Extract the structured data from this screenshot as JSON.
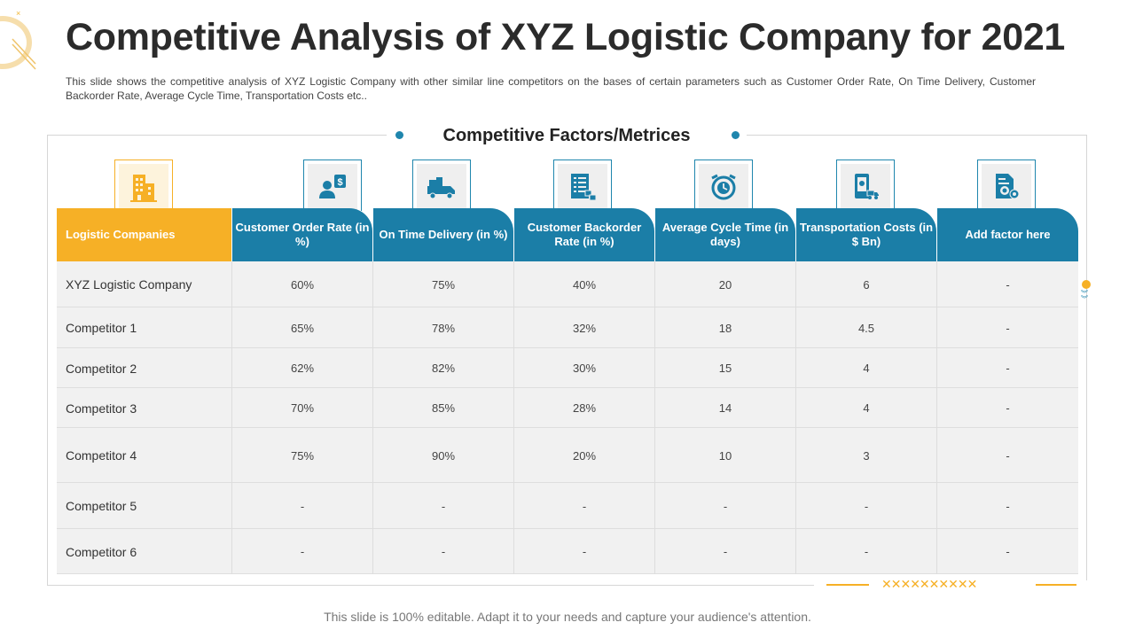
{
  "title": "Competitive Analysis of XYZ Logistic Company for 2021",
  "description": "This slide shows the competitive analysis of XYZ Logistic Company with other similar line competitors on the bases of certain parameters such as Customer Order Rate, On Time Delivery, Customer Backorder Rate, Average Cycle Time, Transportation Costs etc..",
  "section_heading": "Competitive Factors/Metrices",
  "colors": {
    "accent_orange": "#f6b026",
    "accent_blue": "#1b7ea7",
    "row_bg": "#f1f1f1"
  },
  "table": {
    "columns": [
      {
        "label": "Logistic Companies",
        "icon": "office-building-icon"
      },
      {
        "label": "Customer Order Rate (in %)",
        "icon": "customer-money-icon"
      },
      {
        "label": "On Time Delivery (in %)",
        "icon": "delivery-truck-icon"
      },
      {
        "label": "Customer Backorder Rate (in %)",
        "icon": "backorder-list-icon"
      },
      {
        "label": "Average Cycle Time (in days)",
        "icon": "clock-cycle-icon"
      },
      {
        "label": "Transportation Costs (in $ Bn)",
        "icon": "mobile-transport-icon"
      },
      {
        "label": "Add factor here",
        "icon": "settings-document-icon"
      }
    ],
    "rows": [
      [
        "XYZ  Logistic Company",
        "60%",
        "75%",
        "40%",
        "20",
        "6",
        "-"
      ],
      [
        "Competitor 1",
        "65%",
        "78%",
        "32%",
        "18",
        "4.5",
        "-"
      ],
      [
        "Competitor 2",
        "62%",
        "82%",
        "30%",
        "15",
        "4",
        "-"
      ],
      [
        "Competitor 3",
        "70%",
        "85%",
        "28%",
        "14",
        "4",
        "-"
      ],
      [
        "Competitor 4",
        "75%",
        "90%",
        "20%",
        "10",
        "3",
        "-"
      ],
      [
        "Competitor 5",
        "-",
        "-",
        "-",
        "-",
        "-",
        "-"
      ],
      [
        "Competitor 6",
        "-",
        "-",
        "-",
        "-",
        "-",
        "-"
      ]
    ]
  },
  "footer_note": "This slide is 100% editable. Adapt it to your needs and capture your audience's attention."
}
